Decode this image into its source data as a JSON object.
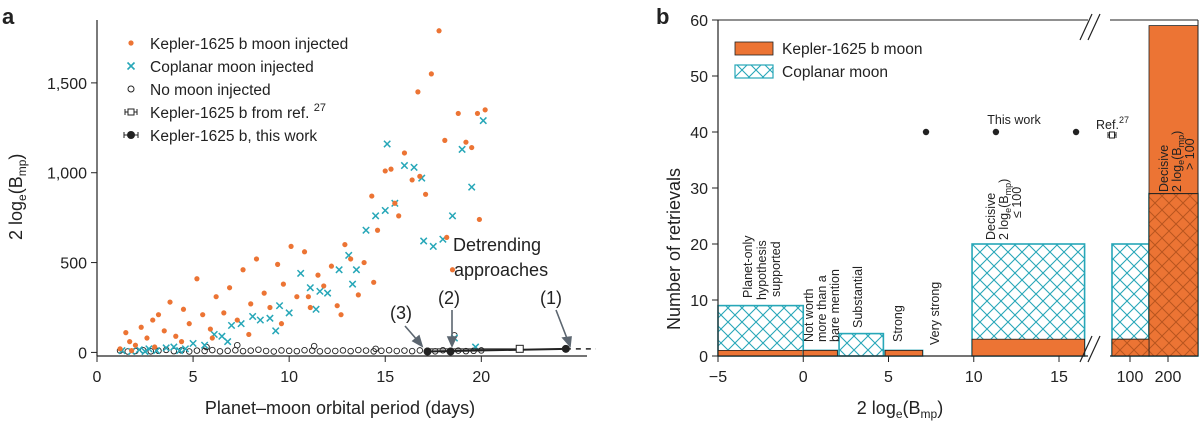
{
  "panel_a_label": "a",
  "panel_b_label": "b",
  "colors": {
    "orange": "#ec7434",
    "cyan": "#27a7b8",
    "black": "#222222"
  },
  "chart_data": [
    {
      "type": "scatter",
      "panel": "a",
      "xlabel": "Planet–moon orbital period (days)",
      "ylabel_main": "2 log",
      "ylabel_sub": "e",
      "ylabel_par": "(B",
      "ylabel_sub2": "mp",
      "ylabel_end": ")",
      "xlim": [
        0,
        25.5
      ],
      "ylim": [
        -20,
        1850
      ],
      "xticks": [
        0,
        5,
        10,
        15,
        20
      ],
      "yticks": [
        0,
        500,
        1000,
        1500
      ],
      "ytick_labels": [
        "0",
        "500",
        "1,000",
        "1,500"
      ],
      "legend": {
        "moon": "Kepler-1625 b moon injected",
        "coplanar": "Coplanar moon injected",
        "nomoon": "No moon injected",
        "ref": "Kepler-1625 b from ref. ",
        "ref_num": "27",
        "thiswork": "Kepler-1625 b, this work"
      },
      "annotations": {
        "detrending_line1": "Detrending",
        "detrending_line2": "approaches",
        "label1": "(1)",
        "label2": "(2)",
        "label3": "(3)"
      },
      "series": [
        {
          "name": "Kepler-1625 b moon injected",
          "x": [
            1.2,
            1.5,
            1.7,
            2.0,
            2.3,
            2.6,
            2.9,
            3.2,
            3.5,
            3.8,
            4.1,
            4.5,
            4.8,
            5.2,
            5.5,
            5.9,
            6.2,
            6.6,
            6.9,
            7.3,
            7.6,
            8.0,
            8.3,
            8.7,
            9.0,
            9.4,
            9.7,
            10.1,
            10.4,
            10.8,
            11.1,
            11.5,
            11.8,
            12.2,
            12.5,
            12.9,
            13.2,
            13.6,
            13.9,
            14.3,
            14.6,
            15.0,
            15.3,
            15.7,
            16.0,
            16.4,
            16.7,
            17.1,
            17.4,
            17.8,
            18.1,
            18.5,
            18.8,
            19.2,
            19.5,
            19.9,
            20.2,
            1.8,
            3.0,
            4.4,
            6.0,
            7.9,
            9.6,
            11.0,
            12.7,
            14.4,
            15.5,
            16.8,
            18.2,
            19.8
          ],
          "y": [
            20,
            110,
            60,
            40,
            140,
            80,
            180,
            210,
            120,
            280,
            90,
            240,
            160,
            410,
            210,
            130,
            310,
            220,
            360,
            180,
            460,
            270,
            520,
            330,
            250,
            490,
            380,
            590,
            310,
            560,
            250,
            430,
            370,
            480,
            260,
            600,
            520,
            320,
            500,
            870,
            680,
            1010,
            1020,
            760,
            1110,
            960,
            1450,
            880,
            1550,
            1790,
            1180,
            460,
            1330,
            1170,
            1140,
            740,
            1350,
            10,
            30,
            60,
            80,
            100,
            160,
            310,
            210,
            390,
            830,
            980,
            640,
            1330
          ]
        },
        {
          "name": "Coplanar moon injected",
          "x": [
            1.3,
            1.8,
            2.2,
            2.7,
            3.1,
            3.6,
            4.0,
            4.6,
            5.0,
            5.6,
            6.1,
            6.5,
            7.0,
            7.5,
            8.1,
            8.5,
            9.0,
            9.5,
            10.0,
            10.6,
            11.1,
            11.6,
            12.0,
            12.6,
            13.1,
            13.5,
            14.0,
            14.5,
            15.0,
            15.5,
            16.0,
            16.5,
            17.0,
            17.5,
            18.0,
            18.5,
            19.0,
            19.5,
            20.1,
            2.5,
            4.3,
            6.8,
            9.3,
            11.4,
            13.3,
            15.1,
            16.9,
            18.6,
            19.7
          ],
          "y": [
            10,
            5,
            15,
            20,
            10,
            25,
            30,
            20,
            50,
            40,
            100,
            90,
            150,
            160,
            200,
            180,
            190,
            260,
            220,
            440,
            360,
            340,
            330,
            460,
            540,
            460,
            680,
            760,
            790,
            830,
            1040,
            1030,
            620,
            590,
            630,
            760,
            1130,
            920,
            1290,
            5,
            10,
            60,
            120,
            240,
            380,
            1160,
            970,
            80,
            30
          ]
        },
        {
          "name": "No moon injected",
          "x": [
            1.2,
            1.6,
            2.0,
            2.4,
            2.8,
            3.2,
            3.6,
            4.0,
            4.4,
            4.8,
            5.2,
            5.6,
            6.0,
            6.4,
            6.8,
            7.2,
            7.6,
            8.0,
            8.4,
            8.8,
            9.2,
            9.6,
            10.0,
            10.4,
            10.8,
            11.2,
            11.6,
            12.0,
            12.4,
            12.8,
            13.2,
            13.6,
            14.0,
            14.4,
            14.8,
            15.2,
            15.6,
            16.0,
            16.4,
            16.8,
            17.2,
            17.6,
            18.0,
            18.4,
            18.8,
            19.2,
            19.6,
            20.0,
            5.7,
            11.3,
            14.5,
            18.6,
            7.3
          ],
          "y": [
            10,
            5,
            8,
            12,
            6,
            9,
            14,
            7,
            11,
            5,
            10,
            8,
            13,
            6,
            9,
            12,
            7,
            10,
            15,
            8,
            5,
            11,
            9,
            7,
            12,
            10,
            6,
            9,
            8,
            11,
            7,
            13,
            10,
            6,
            9,
            12,
            8,
            10,
            7,
            11,
            9,
            6,
            12,
            8,
            10,
            7,
            9,
            11,
            30,
            35,
            20,
            95,
            40
          ]
        }
      ],
      "ref_point": {
        "x": 22.0,
        "y": 20
      },
      "this_work_points": {
        "x": [
          17.2,
          18.4,
          24.4
        ],
        "y": [
          5,
          5,
          20
        ]
      },
      "this_work_line_xrange": [
        17.2,
        25.5
      ]
    },
    {
      "type": "bar",
      "panel": "b",
      "xlabel_main": "2 log",
      "xlabel_sub": "e",
      "xlabel_par": "(B",
      "xlabel_sub2": "mp",
      "xlabel_end": ")",
      "ylabel": "Number of retrievals",
      "ylim": [
        0,
        60
      ],
      "yticks": [
        0,
        10,
        20,
        30,
        40,
        50,
        60
      ],
      "xticks": [
        "−5",
        "0",
        "5",
        "10",
        "15",
        "100",
        "200"
      ],
      "legend": {
        "moon": "Kepler-1625 b moon",
        "coplanar": "Coplanar moon"
      },
      "category_labels": {
        "planet_only": [
          "Planet-only",
          "hypothesis",
          "supported"
        ],
        "not_worth": [
          "Not worth",
          "more than a",
          "bare mention"
        ],
        "substantial": [
          "Substantial"
        ],
        "strong": [
          "Strong"
        ],
        "very_strong": [
          "Very strong"
        ],
        "decisive_low_title": "Decisive",
        "decisive_low_cond": "≤ 100",
        "decisive_high_title": "Decisive",
        "decisive_high_cond": "> 100"
      },
      "bins": [
        {
          "range": "−5 to 0",
          "moon": 1,
          "coplanar": 9
        },
        {
          "range": "0 to 2",
          "moon": 1,
          "coplanar": 1
        },
        {
          "range": "2 to 5",
          "moon": 0,
          "coplanar": 4
        },
        {
          "range": "5 to 7",
          "moon": 1,
          "coplanar": 1
        },
        {
          "range": "7 to 10",
          "moon": 0,
          "coplanar": 0
        },
        {
          "range": "10 to 100",
          "moon": 3,
          "coplanar": 20
        },
        {
          "range": "100 to 200 (broken axis)",
          "moon": 3,
          "coplanar": 20
        },
        {
          "range": "> 200",
          "moon": 59,
          "coplanar": 29
        }
      ],
      "this_work_label": "This work",
      "this_work_points": {
        "x": [
          7.2,
          11.3,
          16.0
        ],
        "y": [
          40,
          40,
          40
        ]
      },
      "ref_label": "Ref.",
      "ref_num": "27",
      "ref_value": 40
    }
  ]
}
